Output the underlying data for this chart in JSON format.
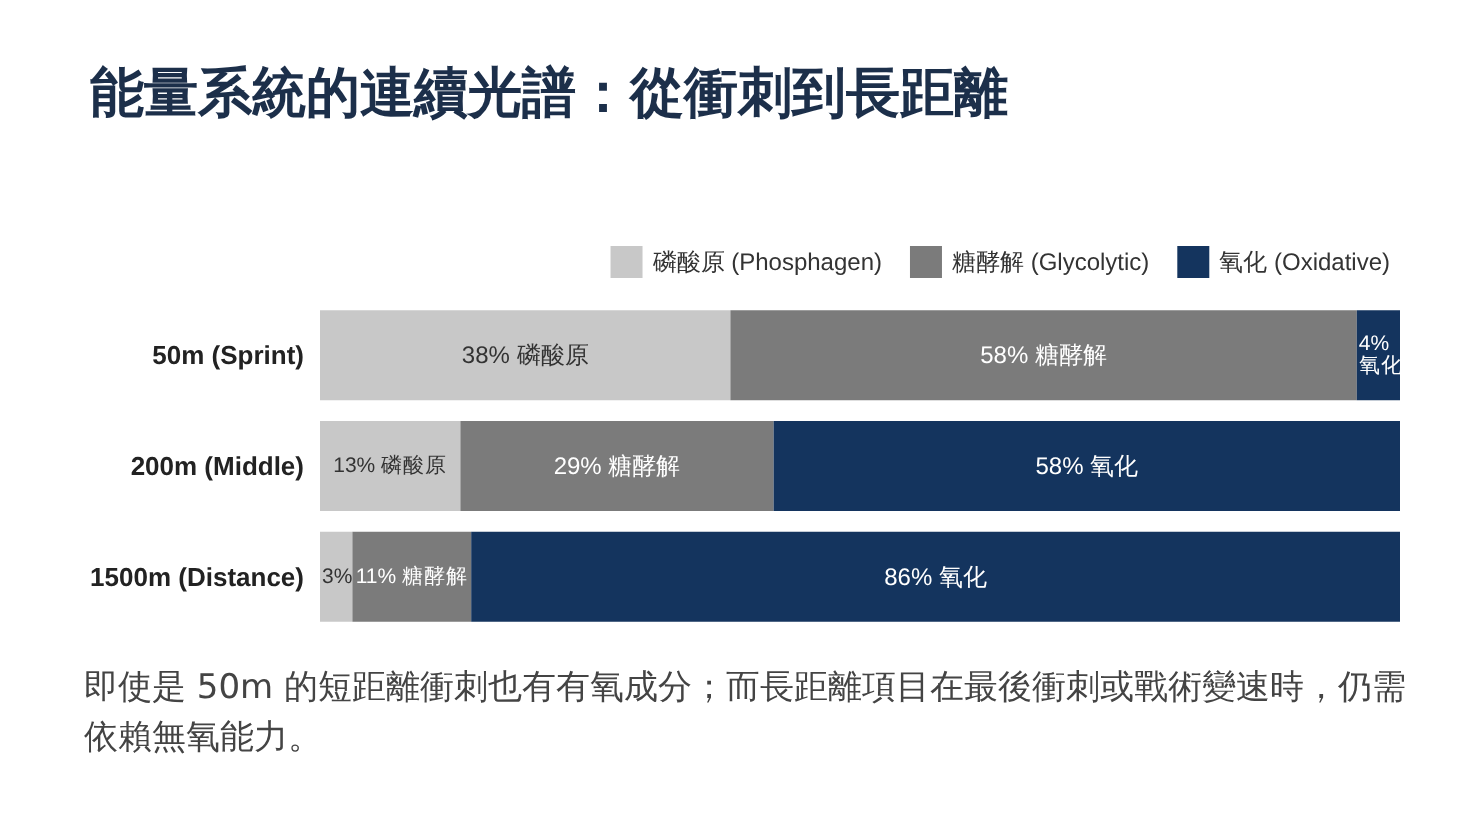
{
  "chart_data": {
    "type": "bar",
    "orientation": "horizontal",
    "stacked": true,
    "title": "能量系統的連續光譜：從衝刺到長距離",
    "categories": [
      "50m (Sprint)",
      "200m (Middle)",
      "1500m (Distance)"
    ],
    "series": [
      {
        "name": "磷酸原 (Phosphagen)",
        "color": "#c8c8c8",
        "values": [
          38,
          13,
          3
        ],
        "value_labels": [
          "38% 磷酸原",
          "13% 磷酸原",
          "3%"
        ]
      },
      {
        "name": "糖酵解 (Glycolytic)",
        "color": "#7b7b7b",
        "values": [
          58,
          29,
          11
        ],
        "value_labels": [
          "58% 糖酵解",
          "29% 糖酵解",
          "11% 糖酵解"
        ]
      },
      {
        "name": "氧化 (Oxidative)",
        "color": "#14345e",
        "values": [
          4,
          58,
          86
        ],
        "value_labels": [
          "4% 氧化",
          "58% 氧化",
          "86% 氧化"
        ]
      }
    ],
    "legend": "top right",
    "tick_labels": "y",
    "annotations": [
      "即使是 50m 的短距離衝刺也有有氧成分；而長距離項目在最後衝刺或戰術變速時，仍需依賴無氧能力。"
    ]
  }
}
